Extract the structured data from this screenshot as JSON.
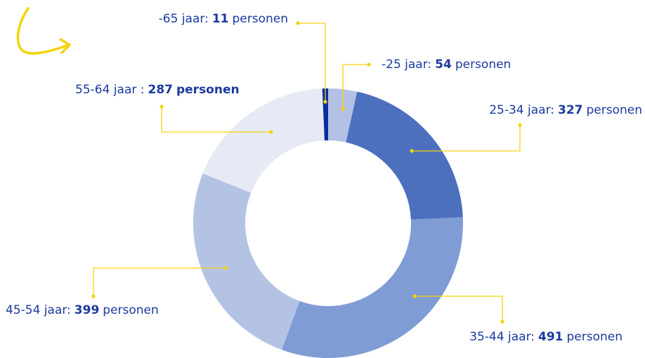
{
  "chart_data": {
    "type": "pie",
    "categories": [
      "-65 jaar:",
      "-25 jaar:",
      "25-34 jaar:",
      "35-44 jaar:",
      "45-54 jaar:",
      "55-64 jaar :"
    ],
    "values": [
      11,
      54,
      327,
      491,
      399,
      287
    ],
    "unit": "personen",
    "bold_unit": [
      false,
      false,
      false,
      false,
      false,
      true
    ],
    "colors": [
      "#0a2d9c",
      "#b3c2e4",
      "#4c6fbe",
      "#809cd4",
      "#b4c3e4",
      "#e6eaf5"
    ],
    "donut": true
  }
}
